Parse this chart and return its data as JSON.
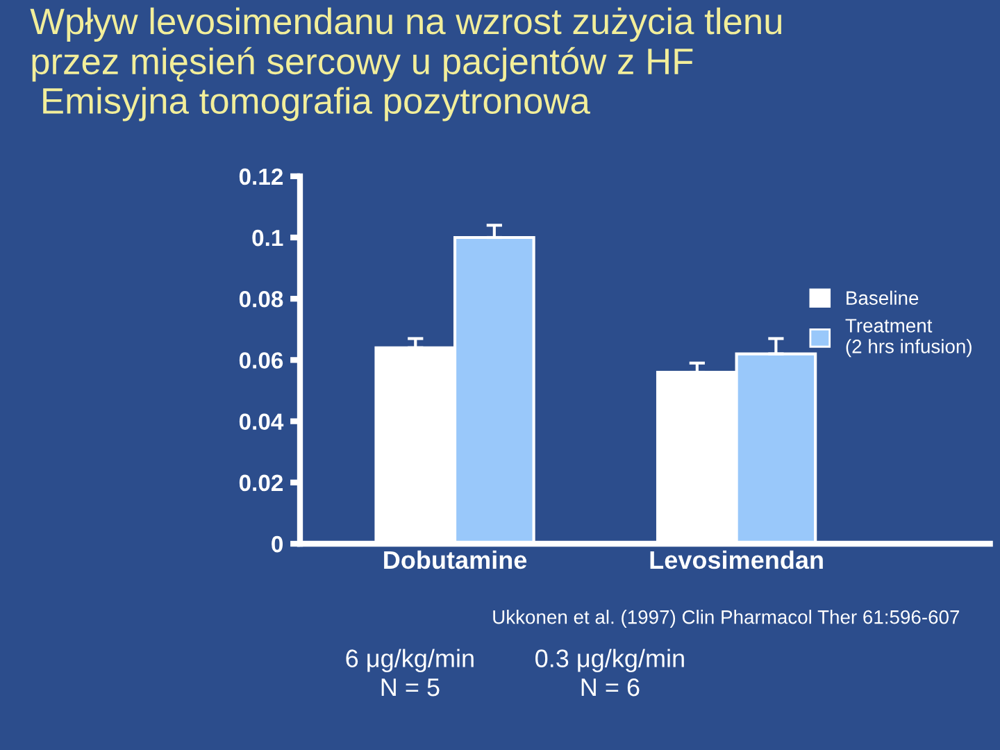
{
  "chart_data": {
    "type": "bar",
    "title": "Wpływ levosimendanu na wzrost zużycia tlenu\nprzez mięsień sercowy u pacjentów z HF\n Emisyjna tomografia pozytronowa",
    "categories": [
      "Dobutamine",
      "Levosimendan"
    ],
    "series": [
      {
        "name": "Baseline",
        "color": "#ffffff",
        "values": [
          0.064,
          0.056
        ],
        "errors": [
          [
            0.064,
            0.067
          ],
          [
            0.056,
            0.059
          ]
        ]
      },
      {
        "name": "Treatment\n(2 hrs infusion)",
        "color": "#99c8fa",
        "values": [
          0.1,
          0.062
        ],
        "errors": [
          [
            0.1,
            0.104
          ],
          [
            0.062,
            0.067
          ]
        ]
      }
    ],
    "ylim": [
      0,
      0.12
    ],
    "yticks": [
      0,
      0.02,
      0.04,
      0.06,
      0.08,
      0.1,
      0.12
    ],
    "grid": false,
    "legend": "right",
    "annotations": [
      "Ukkonen et al. (1997) Clin Pharmacol Ther 61:596-607",
      "6 μg/kg/min\nN = 5",
      "0.3 μg/kg/min\nN = 6"
    ]
  }
}
